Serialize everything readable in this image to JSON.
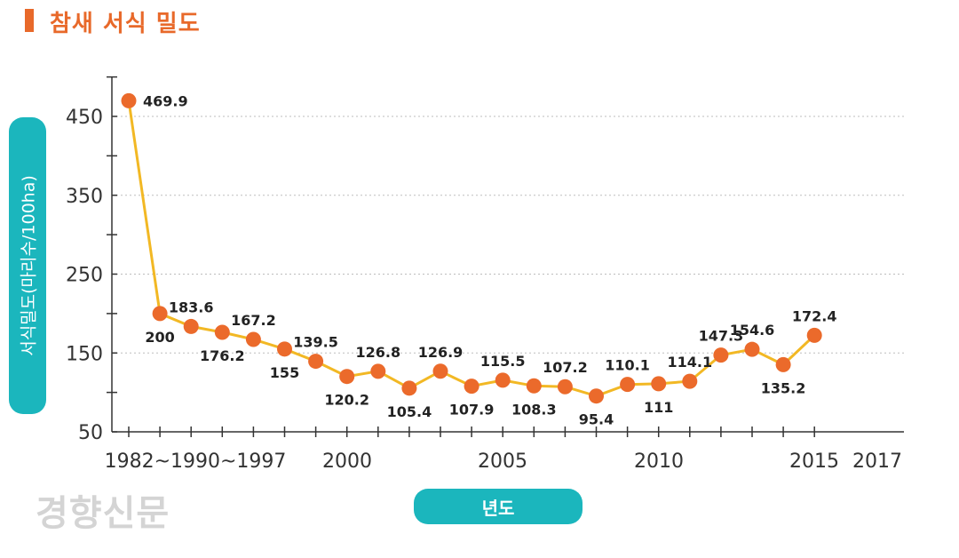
{
  "chart_data": {
    "type": "line",
    "title": "참새 서식 밀도",
    "xlabel": "년도",
    "ylabel": "서식밀도(마리수/100ha)",
    "x": [
      "1982",
      "1990",
      "1997",
      "1998",
      "1999",
      "2000",
      "2001",
      "2002",
      "2003",
      "2004",
      "2005",
      "2006",
      "2007",
      "2008",
      "2009",
      "2010",
      "2011",
      "2012",
      "2013",
      "2014",
      "2015",
      "2016",
      "2017"
    ],
    "values": [
      469.9,
      200,
      183.6,
      176.2,
      167.2,
      155,
      139.5,
      120.2,
      126.8,
      105.4,
      126.9,
      107.9,
      115.5,
      108.3,
      107.2,
      95.4,
      110.1,
      111,
      114.1,
      147.3,
      154.6,
      135.2,
      172.4
    ],
    "data_labels": [
      "469.9",
      "200",
      "183.6",
      "176.2",
      "167.2",
      "155",
      "139.5",
      "120.2",
      "126.8",
      "105.4",
      "126.9",
      "107.9",
      "115.5",
      "108.3",
      "107.2",
      "95.4",
      "110.1",
      "111",
      "114.1",
      "147.3",
      "154.6",
      "135.2",
      "172.4"
    ],
    "x_tick_labels": [
      "1982~1990~1997",
      "2000",
      "2005",
      "2010",
      "2015",
      "2017"
    ],
    "y_ticks": [
      50,
      150,
      250,
      350,
      450
    ],
    "ylim": [
      50,
      450
    ],
    "grid": "horizontal-dotted",
    "line_color": "#f2b824",
    "marker_color": "#eb6a2b"
  },
  "watermark": "경향신문"
}
